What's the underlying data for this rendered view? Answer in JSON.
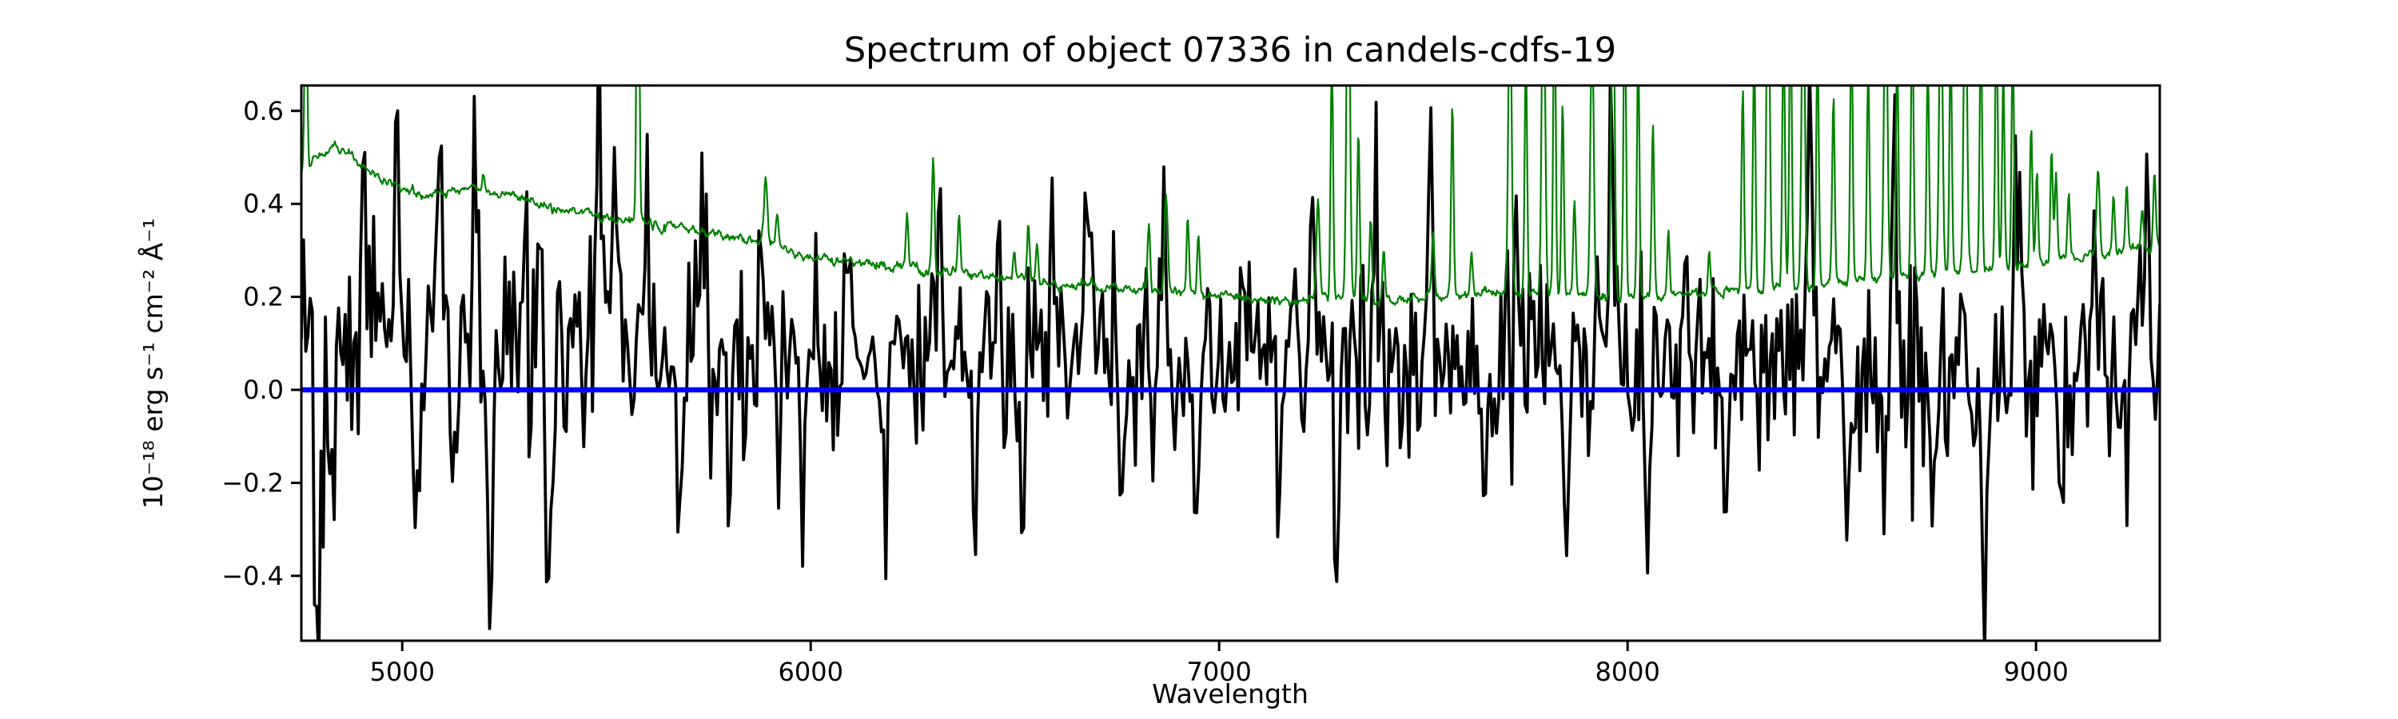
{
  "figure": {
    "title": "Spectrum of object 07336 in candels-cdfs-19",
    "x_axis": {
      "label": "Wavelength",
      "tick_values": [
        5000,
        6000,
        7000,
        8000,
        9000
      ],
      "tick_labels": [
        "5000",
        "6000",
        "7000",
        "8000",
        "9000"
      ]
    },
    "y_axis": {
      "label": "10⁻¹⁸ erg s⁻¹ cm⁻² Å⁻¹",
      "tick_values": [
        -0.4,
        -0.2,
        0.0,
        0.2,
        0.4,
        0.6
      ],
      "tick_labels": [
        "−0.4",
        "−0.2",
        "0.0",
        "0.2",
        "0.4",
        "0.6"
      ]
    }
  },
  "chart_data": {
    "type": "line",
    "title": "Spectrum of object 07336 in candels-cdfs-19",
    "xlabel": "Wavelength",
    "ylabel": "10⁻¹⁸ erg s⁻¹ cm⁻² Å⁻¹",
    "xlim": [
      4753,
      9303
    ],
    "ylim": [
      -0.5395,
      0.6546
    ],
    "xticks": [
      5000,
      6000,
      7000,
      8000,
      9000
    ],
    "yticks": [
      -0.4,
      -0.2,
      0.0,
      0.2,
      0.4,
      0.6
    ],
    "grid": false,
    "legend": null,
    "colors": {
      "flux": "#000000",
      "sky": "#008000",
      "zero_line": "#0000ff",
      "frame": "#000000",
      "text": "#000000",
      "background": "#ffffff"
    },
    "series": [
      {
        "name": "object-flux-spectrum",
        "kind": "noisy-spectrum",
        "color": "#000000",
        "linewidth": 3.8,
        "n_points": 850,
        "seed": 73361,
        "baseline_keypoints": [
          [
            4753,
            0.1
          ],
          [
            5200,
            0.09
          ],
          [
            5800,
            0.08
          ],
          [
            6500,
            0.07
          ],
          [
            7200,
            0.06
          ],
          [
            8000,
            0.05
          ],
          [
            8800,
            0.05
          ],
          [
            9303,
            0.05
          ]
        ],
        "sigma_keypoints": [
          [
            4753,
            0.15
          ],
          [
            5000,
            0.14
          ],
          [
            5500,
            0.12
          ],
          [
            6000,
            0.105
          ],
          [
            6500,
            0.1
          ],
          [
            7000,
            0.095
          ],
          [
            7500,
            0.1
          ],
          [
            8000,
            0.1
          ],
          [
            8500,
            0.11
          ],
          [
            8900,
            0.12
          ],
          [
            9303,
            0.12
          ]
        ],
        "sky_noise_coupling": 0.35,
        "feature_width_A": 6,
        "feature_extrema": [
          [
            4795,
            -0.47
          ],
          [
            4830,
            -0.3
          ],
          [
            4905,
            0.55
          ],
          [
            4985,
            0.57
          ],
          [
            5035,
            -0.42
          ],
          [
            5090,
            0.45
          ],
          [
            5178,
            0.58
          ],
          [
            5215,
            -0.36
          ],
          [
            5300,
            0.46
          ],
          [
            5360,
            -0.34
          ],
          [
            5481,
            0.6
          ],
          [
            5520,
            0.48
          ],
          [
            5600,
            0.43
          ],
          [
            5680,
            -0.29
          ],
          [
            5735,
            0.45
          ],
          [
            5800,
            -0.25
          ],
          [
            5880,
            0.42
          ],
          [
            5980,
            -0.26
          ],
          [
            6090,
            0.35
          ],
          [
            6180,
            -0.22
          ],
          [
            6318,
            0.42
          ],
          [
            6400,
            -0.25
          ],
          [
            6455,
            0.38
          ],
          [
            6520,
            -0.3
          ],
          [
            6592,
            0.4
          ],
          [
            6680,
            0.44
          ],
          [
            6760,
            -0.28
          ],
          [
            6860,
            0.36
          ],
          [
            6940,
            -0.25
          ],
          [
            7060,
            0.33
          ],
          [
            7150,
            -0.25
          ],
          [
            7230,
            0.43
          ],
          [
            7290,
            -0.4
          ],
          [
            7380,
            0.35
          ],
          [
            7518,
            0.52
          ],
          [
            7650,
            -0.26
          ],
          [
            7730,
            0.35
          ],
          [
            7850,
            -0.28
          ],
          [
            7960,
            0.54
          ],
          [
            8050,
            -0.3
          ],
          [
            8140,
            0.33
          ],
          [
            8240,
            -0.26
          ],
          [
            8447,
            0.54
          ],
          [
            8540,
            -0.28
          ],
          [
            8655,
            0.59
          ],
          [
            8750,
            -0.3
          ],
          [
            8873,
            -0.46
          ],
          [
            8956,
            0.55
          ],
          [
            9060,
            -0.25
          ],
          [
            9140,
            0.32
          ],
          [
            9224,
            -0.28
          ],
          [
            9270,
            0.4
          ]
        ]
      },
      {
        "name": "sky-noise-spectrum",
        "kind": "sky-spectrum",
        "color": "#008000",
        "linewidth": 2.2,
        "n_points": 2275,
        "seed": 5577,
        "continuum_wiggle_sigma": 0.0042,
        "continuum_keypoints": [
          [
            4753,
            0.47
          ],
          [
            4790,
            0.5
          ],
          [
            4820,
            0.515
          ],
          [
            4850,
            0.51
          ],
          [
            4880,
            0.505
          ],
          [
            4920,
            0.47
          ],
          [
            4960,
            0.445
          ],
          [
            5010,
            0.435
          ],
          [
            5060,
            0.415
          ],
          [
            5120,
            0.43
          ],
          [
            5180,
            0.435
          ],
          [
            5240,
            0.42
          ],
          [
            5300,
            0.41
          ],
          [
            5360,
            0.395
          ],
          [
            5420,
            0.385
          ],
          [
            5480,
            0.375
          ],
          [
            5540,
            0.37
          ],
          [
            5600,
            0.36
          ],
          [
            5660,
            0.35
          ],
          [
            5720,
            0.34
          ],
          [
            5780,
            0.33
          ],
          [
            5840,
            0.32
          ],
          [
            5900,
            0.315
          ],
          [
            5960,
            0.3
          ],
          [
            6020,
            0.285
          ],
          [
            6080,
            0.275
          ],
          [
            6140,
            0.27
          ],
          [
            6200,
            0.265
          ],
          [
            6260,
            0.26
          ],
          [
            6320,
            0.255
          ],
          [
            6380,
            0.25
          ],
          [
            6440,
            0.245
          ],
          [
            6500,
            0.24
          ],
          [
            6560,
            0.235
          ],
          [
            6620,
            0.23
          ],
          [
            6680,
            0.225
          ],
          [
            6740,
            0.22
          ],
          [
            6800,
            0.215
          ],
          [
            6860,
            0.21
          ],
          [
            6920,
            0.21
          ],
          [
            6980,
            0.205
          ],
          [
            7050,
            0.2
          ],
          [
            7120,
            0.195
          ],
          [
            7200,
            0.19
          ],
          [
            7300,
            0.19
          ],
          [
            7400,
            0.195
          ],
          [
            7500,
            0.2
          ],
          [
            7600,
            0.205
          ],
          [
            7700,
            0.21
          ],
          [
            7800,
            0.205
          ],
          [
            7900,
            0.2
          ],
          [
            8000,
            0.2
          ],
          [
            8100,
            0.205
          ],
          [
            8200,
            0.21
          ],
          [
            8300,
            0.215
          ],
          [
            8400,
            0.22
          ],
          [
            8500,
            0.23
          ],
          [
            8600,
            0.24
          ],
          [
            8700,
            0.25
          ],
          [
            8800,
            0.255
          ],
          [
            8900,
            0.26
          ],
          [
            9000,
            0.27
          ],
          [
            9100,
            0.285
          ],
          [
            9200,
            0.3
          ],
          [
            9303,
            0.315
          ]
        ],
        "emission_lines": [
          [
            4764,
            0.95,
            3
          ],
          [
            5199,
            0.47,
            3
          ],
          [
            5577,
            1.3,
            3
          ],
          [
            5890,
            0.47,
            4
          ],
          [
            5918,
            0.38,
            3
          ],
          [
            6236,
            0.38,
            3
          ],
          [
            6300,
            0.5,
            3
          ],
          [
            6363,
            0.38,
            3
          ],
          [
            6498,
            0.3,
            3
          ],
          [
            6533,
            0.35,
            3
          ],
          [
            6554,
            0.33,
            3
          ],
          [
            6828,
            0.35,
            3
          ],
          [
            6870,
            0.43,
            4
          ],
          [
            6923,
            0.37,
            3
          ],
          [
            6949,
            0.34,
            3
          ],
          [
            7242,
            0.41,
            4
          ],
          [
            7276,
            0.72,
            3
          ],
          [
            7316,
            1.05,
            4
          ],
          [
            7341,
            0.56,
            3
          ],
          [
            7371,
            0.37,
            3
          ],
          [
            7403,
            0.3,
            3
          ],
          [
            7524,
            0.34,
            3
          ],
          [
            7571,
            0.63,
            3
          ],
          [
            7618,
            0.3,
            3
          ],
          [
            7712,
            0.88,
            4
          ],
          [
            7751,
            0.74,
            3
          ],
          [
            7794,
            0.98,
            4
          ],
          [
            7821,
            0.9,
            3
          ],
          [
            7841,
            0.62,
            3
          ],
          [
            7870,
            0.4,
            3
          ],
          [
            7913,
            0.8,
            4
          ],
          [
            7964,
            0.98,
            4
          ],
          [
            7993,
            0.88,
            3
          ],
          [
            8026,
            0.74,
            3
          ],
          [
            8062,
            0.57,
            3
          ],
          [
            8100,
            0.35,
            3
          ],
          [
            8200,
            0.3,
            3
          ],
          [
            8282,
            0.64,
            3
          ],
          [
            8310,
            0.74,
            3
          ],
          [
            8344,
            0.98,
            4
          ],
          [
            8382,
            0.8,
            3
          ],
          [
            8399,
            0.86,
            3
          ],
          [
            8430,
            0.92,
            4
          ],
          [
            8465,
            0.74,
            3
          ],
          [
            8504,
            0.63,
            3
          ],
          [
            8548,
            0.8,
            3
          ],
          [
            8589,
            0.7,
            3
          ],
          [
            8632,
            0.95,
            4
          ],
          [
            8660,
            0.74,
            3
          ],
          [
            8697,
            0.85,
            3
          ],
          [
            8735,
            0.7,
            3
          ],
          [
            8767,
            0.9,
            4
          ],
          [
            8791,
            0.74,
            3
          ],
          [
            8827,
            0.95,
            4
          ],
          [
            8865,
            0.8,
            3
          ],
          [
            8903,
            0.85,
            3
          ],
          [
            8920,
            0.68,
            3
          ],
          [
            8943,
            0.74,
            3
          ],
          [
            8988,
            0.58,
            3
          ],
          [
            9002,
            0.47,
            3
          ],
          [
            9038,
            0.52,
            3
          ],
          [
            9049,
            0.47,
            3
          ],
          [
            9080,
            0.43,
            3
          ],
          [
            9152,
            0.47,
            4
          ],
          [
            9190,
            0.42,
            3
          ],
          [
            9222,
            0.44,
            3
          ],
          [
            9260,
            0.4,
            3
          ],
          [
            9290,
            0.47,
            3
          ]
        ]
      },
      {
        "name": "zero-flux-line",
        "kind": "hline",
        "color": "#0000ff",
        "linewidth": 6.5,
        "y": 0.0
      }
    ]
  }
}
